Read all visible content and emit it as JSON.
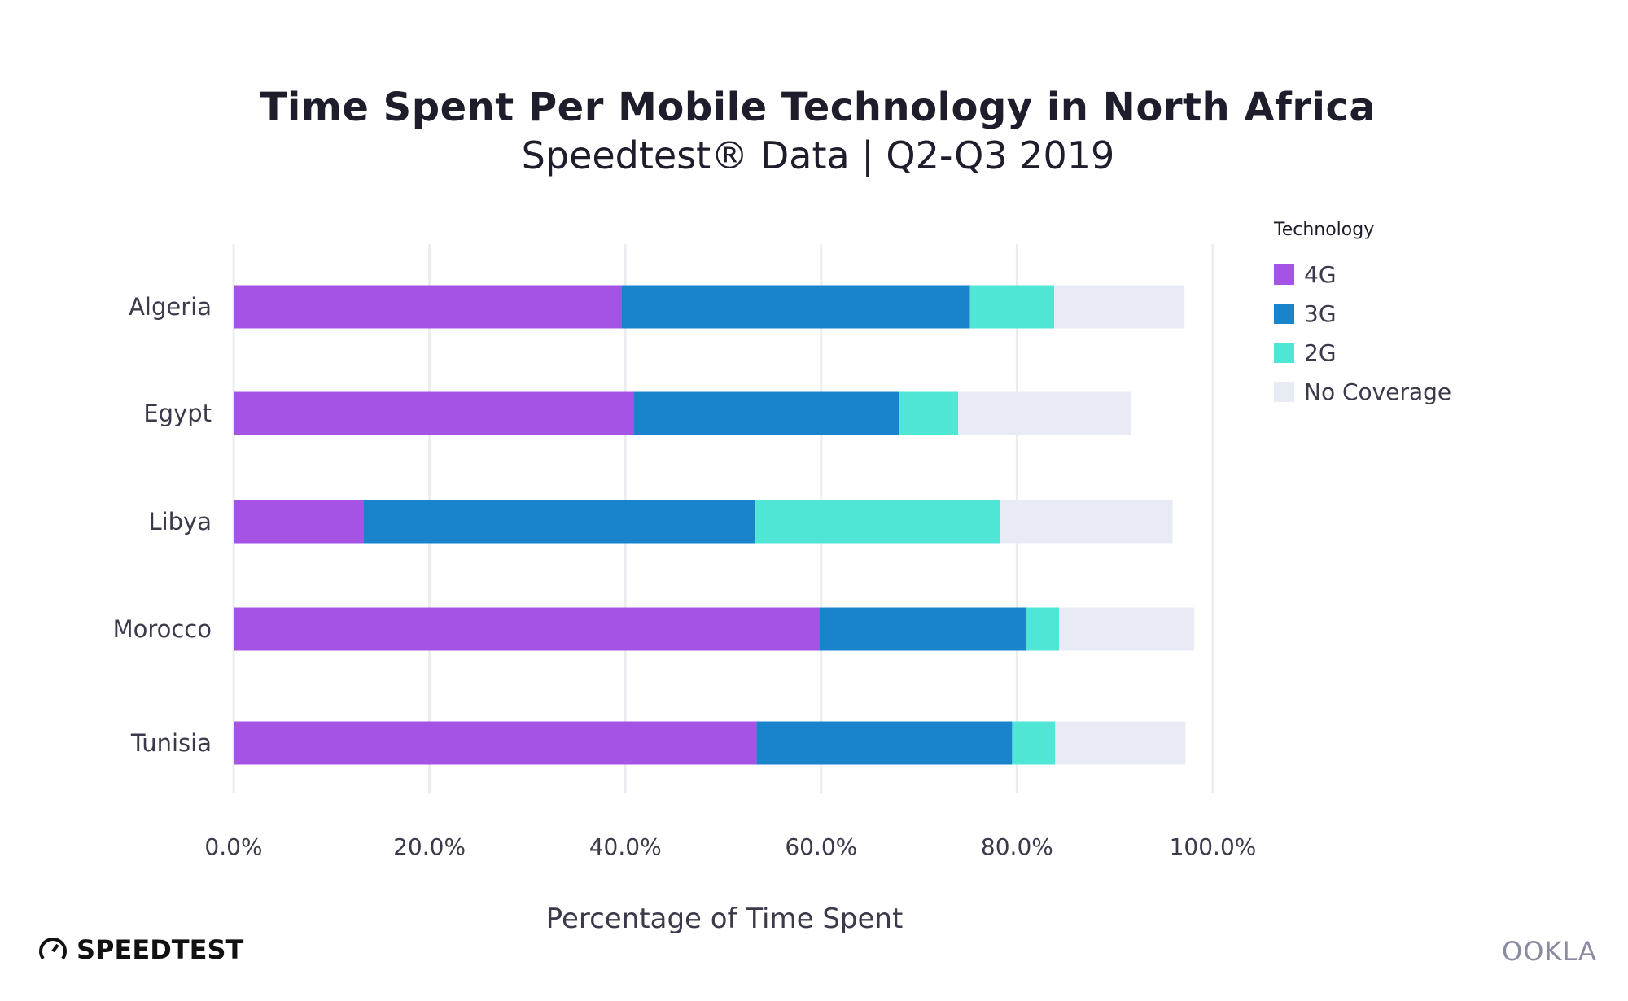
{
  "title": "Time Spent Per Mobile Technology in North Africa",
  "subtitle": "Speedtest® Data | Q2-Q3 2019",
  "logos": {
    "left": "SPEEDTEST",
    "right": "OOKLA"
  },
  "chart_data": {
    "type": "bar",
    "orientation": "horizontal",
    "stacked": true,
    "title": "Time Spent Per Mobile Technology in North Africa",
    "subtitle": "Speedtest® Data | Q2-Q3 2019",
    "xlabel": "Percentage of Time Spent",
    "ylabel": "",
    "xlim": [
      0,
      100
    ],
    "x_ticks": [
      "0.0%",
      "20.0%",
      "40.0%",
      "60.0%",
      "80.0%",
      "100.0%"
    ],
    "grid": true,
    "legend_title": "Technology",
    "legend_position": "top-right",
    "categories": [
      "Algeria",
      "Egypt",
      "Libya",
      "Morocco",
      "Tunisia"
    ],
    "series": [
      {
        "name": "4G",
        "color": "#a453e4",
        "values": [
          39.6,
          40.9,
          13.3,
          59.8,
          53.4
        ]
      },
      {
        "name": "3G",
        "color": "#1984cc",
        "values": [
          35.6,
          27.1,
          40.0,
          21.1,
          26.1
        ]
      },
      {
        "name": "2G",
        "color": "#50e6d6",
        "values": [
          8.6,
          6.0,
          25.0,
          3.4,
          4.4
        ]
      },
      {
        "name": "No Coverage",
        "color": "#e8ebf3",
        "values": [
          13.3,
          17.6,
          17.6,
          13.8,
          13.3
        ]
      }
    ]
  }
}
